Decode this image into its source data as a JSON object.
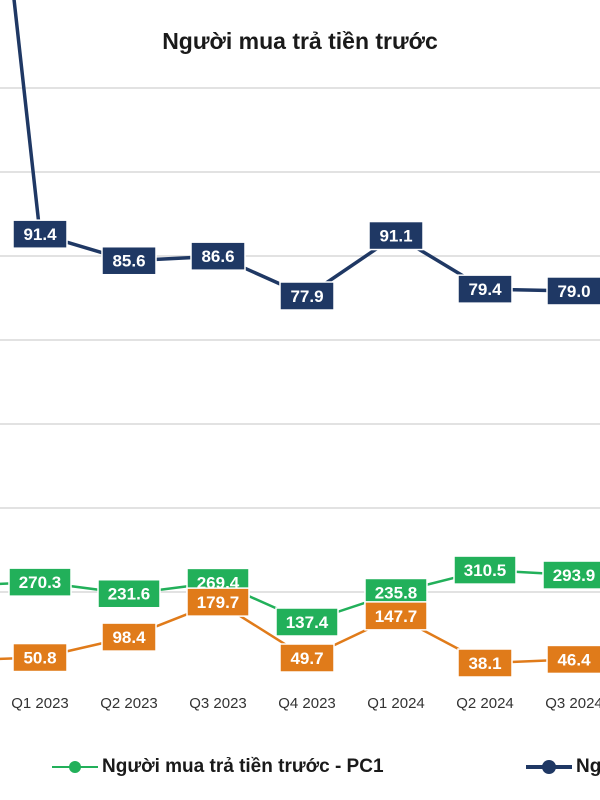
{
  "chart_data": {
    "type": "line",
    "title": "Người mua trả tiền trước",
    "categories": [
      "Q1 2023",
      "Q2 2023",
      "Q3 2023",
      "Q4 2023",
      "Q1 2024",
      "Q2 2024",
      "Q3 2024"
    ],
    "series": [
      {
        "name": "Ng",
        "color": "#1f3864",
        "values": [
          91.4,
          85.6,
          86.6,
          77.9,
          91.1,
          79.4,
          79.0
        ]
      },
      {
        "name": "Người mua trả tiền trước - PC1",
        "color": "#22b05a",
        "values": [
          270.3,
          231.6,
          269.4,
          137.4,
          235.8,
          310.5,
          293.9
        ]
      },
      {
        "name": "",
        "color": "#e07b1a",
        "values": [
          50.8,
          98.4,
          179.7,
          49.7,
          147.7,
          38.1,
          46.4
        ]
      }
    ],
    "grid": true,
    "legend_position": "bottom"
  }
}
